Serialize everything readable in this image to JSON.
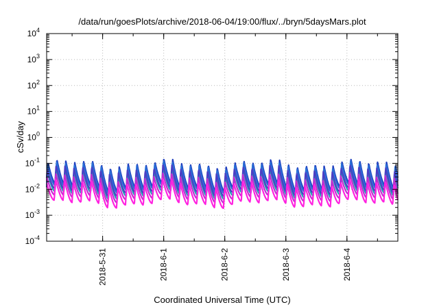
{
  "chart_data": {
    "type": "line",
    "title": "/data/run/goesPlots/archive/2018-06-04/19:00/flux/../bryn/5daysMars.plot",
    "xlabel": "Coordinated Universal Time (UTC)",
    "ylabel": "cSv/day",
    "yscale": "log",
    "ylim": [
      0.0001,
      10000
    ],
    "ytick_exponents": [
      "-4",
      "-3",
      "-2",
      "-1",
      "0",
      "1",
      "2",
      "3",
      "4"
    ],
    "ytick_base": "10",
    "xlim": [
      "2018-05-30T02:00",
      "2018-06-04T20:00"
    ],
    "xticks": [
      {
        "label": "2018-5-31",
        "date": "2018-05-31T00:00"
      },
      {
        "label": "2018-6-1",
        "date": "2018-06-01T00:00"
      },
      {
        "label": "2018-6-2",
        "date": "2018-06-02T00:00"
      },
      {
        "label": "2018-6-3",
        "date": "2018-06-03T00:00"
      },
      {
        "label": "2018-6-4",
        "date": "2018-06-04T00:00"
      }
    ],
    "grid": true,
    "oscillation_period_hours": 3.5,
    "series": [
      {
        "color": "#1f3fbf",
        "peak": 0.1,
        "trough": 0.012
      },
      {
        "color": "#2a6fd6",
        "peak": 0.085,
        "trough": 0.01
      },
      {
        "color": "#1ea4b4",
        "peak": 0.045,
        "trough": 0.006
      },
      {
        "color": "#4b3fc4",
        "peak": 0.06,
        "trough": 0.008
      },
      {
        "color": "#c02fd0",
        "peak": 0.03,
        "trough": 0.0045
      },
      {
        "color": "#ff22e0",
        "peak": 0.018,
        "trough": 0.0028
      }
    ]
  }
}
